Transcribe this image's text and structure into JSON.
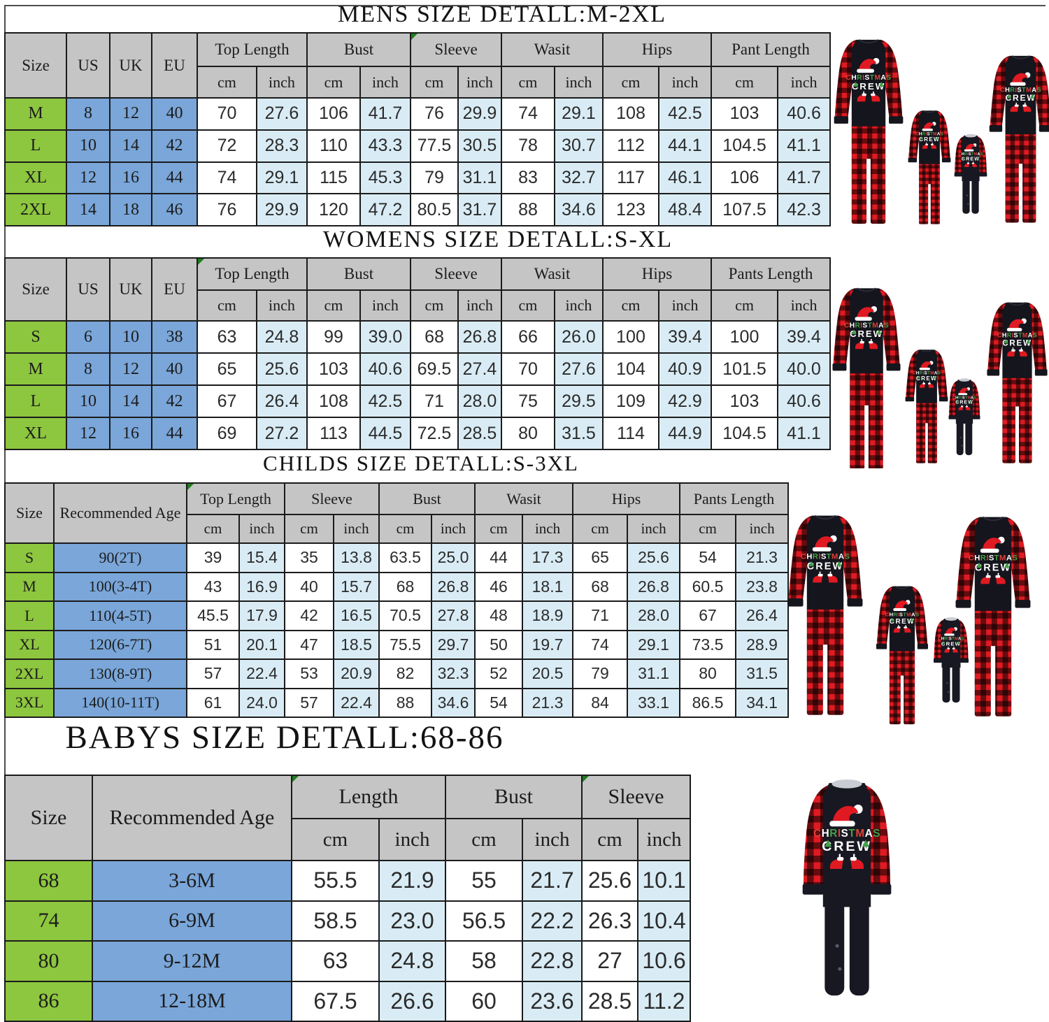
{
  "colors": {
    "header_gray": "#c5c5c5",
    "size_green": "#8dc63f",
    "intl_blue": "#7aa6d9",
    "alt_row_blue": "#d9ecf5",
    "border_black": "#1b1b1b",
    "marker_green": "#1e7d1e",
    "plaid_red": "#e01a22",
    "garment_black": "#15151d",
    "graphic_red": "#e04038",
    "graphic_green": "#43a047",
    "graphic_white": "#ffffff"
  },
  "tables": [
    {
      "id": "mens",
      "title": "MENS SIZE DETALL:M-2XL",
      "left_headers": [
        "Size",
        "US",
        "UK",
        "EU"
      ],
      "groups": [
        "Top Length",
        "Bust",
        "Sleeve",
        "Wasit",
        "Hips",
        "Pant Length"
      ],
      "units": [
        "cm",
        "inch"
      ],
      "rows": [
        {
          "size": "M",
          "intl": [
            "8",
            "12",
            "40"
          ],
          "values": [
            "70",
            "27.6",
            "106",
            "41.7",
            "76",
            "29.9",
            "74",
            "29.1",
            "108",
            "42.5",
            "103",
            "40.6"
          ]
        },
        {
          "size": "L",
          "intl": [
            "10",
            "14",
            "42"
          ],
          "values": [
            "72",
            "28.3",
            "110",
            "43.3",
            "77.5",
            "30.5",
            "78",
            "30.7",
            "112",
            "44.1",
            "104.5",
            "41.1"
          ]
        },
        {
          "size": "XL",
          "intl": [
            "12",
            "16",
            "44"
          ],
          "values": [
            "74",
            "29.1",
            "115",
            "45.3",
            "79",
            "31.1",
            "83",
            "32.7",
            "117",
            "46.1",
            "106",
            "41.7"
          ]
        },
        {
          "size": "2XL",
          "intl": [
            "14",
            "18",
            "46"
          ],
          "values": [
            "76",
            "29.9",
            "120",
            "47.2",
            "80.5",
            "31.7",
            "88",
            "34.6",
            "123",
            "48.4",
            "107.5",
            "42.3"
          ]
        }
      ]
    },
    {
      "id": "womens",
      "title": "WOMENS SIZE DETALL:S-XL",
      "left_headers": [
        "Size",
        "US",
        "UK",
        "EU"
      ],
      "groups": [
        "Top Length",
        "Bust",
        "Sleeve",
        "Wasit",
        "Hips",
        "Pants Length"
      ],
      "units": [
        "cm",
        "inch"
      ],
      "rows": [
        {
          "size": "S",
          "intl": [
            "6",
            "10",
            "38"
          ],
          "values": [
            "63",
            "24.8",
            "99",
            "39.0",
            "68",
            "26.8",
            "66",
            "26.0",
            "100",
            "39.4",
            "100",
            "39.4"
          ]
        },
        {
          "size": "M",
          "intl": [
            "8",
            "12",
            "40"
          ],
          "values": [
            "65",
            "25.6",
            "103",
            "40.6",
            "69.5",
            "27.4",
            "70",
            "27.6",
            "104",
            "40.9",
            "101.5",
            "40.0"
          ]
        },
        {
          "size": "L",
          "intl": [
            "10",
            "14",
            "42"
          ],
          "values": [
            "67",
            "26.4",
            "108",
            "42.5",
            "71",
            "28.0",
            "75",
            "29.5",
            "109",
            "42.9",
            "103",
            "40.6"
          ]
        },
        {
          "size": "XL",
          "intl": [
            "12",
            "16",
            "44"
          ],
          "values": [
            "69",
            "27.2",
            "113",
            "44.5",
            "72.5",
            "28.5",
            "80",
            "31.5",
            "114",
            "44.9",
            "104.5",
            "41.1"
          ]
        }
      ]
    },
    {
      "id": "childs",
      "title": "CHILDS SIZE DETALL:S-3XL",
      "left_headers": [
        "Size",
        "Recommended Age"
      ],
      "groups": [
        "Top Length",
        "Sleeve",
        "Bust",
        "Wasit",
        "Hips",
        "Pants Length"
      ],
      "units": [
        "cm",
        "inch"
      ],
      "rows": [
        {
          "size": "S",
          "age": "90(2T)",
          "values": [
            "39",
            "15.4",
            "35",
            "13.8",
            "63.5",
            "25.0",
            "44",
            "17.3",
            "65",
            "25.6",
            "54",
            "21.3"
          ]
        },
        {
          "size": "M",
          "age": "100(3-4T)",
          "values": [
            "43",
            "16.9",
            "40",
            "15.7",
            "68",
            "26.8",
            "46",
            "18.1",
            "68",
            "26.8",
            "60.5",
            "23.8"
          ]
        },
        {
          "size": "L",
          "age": "110(4-5T)",
          "values": [
            "45.5",
            "17.9",
            "42",
            "16.5",
            "70.5",
            "27.8",
            "48",
            "18.9",
            "71",
            "28.0",
            "67",
            "26.4"
          ]
        },
        {
          "size": "XL",
          "age": "120(6-7T)",
          "values": [
            "51",
            "20.1",
            "47",
            "18.5",
            "75.5",
            "29.7",
            "50",
            "19.7",
            "74",
            "29.1",
            "73.5",
            "28.9"
          ]
        },
        {
          "size": "2XL",
          "age": "130(8-9T)",
          "values": [
            "57",
            "22.4",
            "53",
            "20.9",
            "82",
            "32.3",
            "52",
            "20.5",
            "79",
            "31.1",
            "80",
            "31.5"
          ]
        },
        {
          "size": "3XL",
          "age": "140(10-11T)",
          "values": [
            "61",
            "24.0",
            "57",
            "22.4",
            "88",
            "34.6",
            "54",
            "21.3",
            "84",
            "33.1",
            "86.5",
            "34.1"
          ]
        }
      ]
    },
    {
      "id": "babys",
      "title": "BABYS SIZE DETALL:68-86",
      "left_headers": [
        "Size",
        "Recommended Age"
      ],
      "groups": [
        "Length",
        "Bust",
        "Sleeve"
      ],
      "units": [
        "cm",
        "inch"
      ],
      "rows": [
        {
          "size": "68",
          "age": "3-6M",
          "values": [
            "55.5",
            "21.9",
            "55",
            "21.7",
            "25.6",
            "10.1"
          ]
        },
        {
          "size": "74",
          "age": "6-9M",
          "values": [
            "58.5",
            "23.0",
            "56.5",
            "22.2",
            "26.3",
            "10.4"
          ]
        },
        {
          "size": "80",
          "age": "9-12M",
          "values": [
            "63",
            "24.8",
            "58",
            "22.8",
            "27",
            "10.6"
          ]
        },
        {
          "size": "86",
          "age": "12-18M",
          "values": [
            "67.5",
            "26.6",
            "60",
            "23.6",
            "28.5",
            "11.2"
          ]
        }
      ]
    }
  ],
  "product": {
    "graphic_word1": "CHRISTMAS",
    "graphic_word2": "CREW",
    "description": "Family matching Christmas pajamas: black top with CHRISTMAS CREW santa-hat graphic, red-black buffalo plaid sleeves and pants; baby plaid romper"
  }
}
